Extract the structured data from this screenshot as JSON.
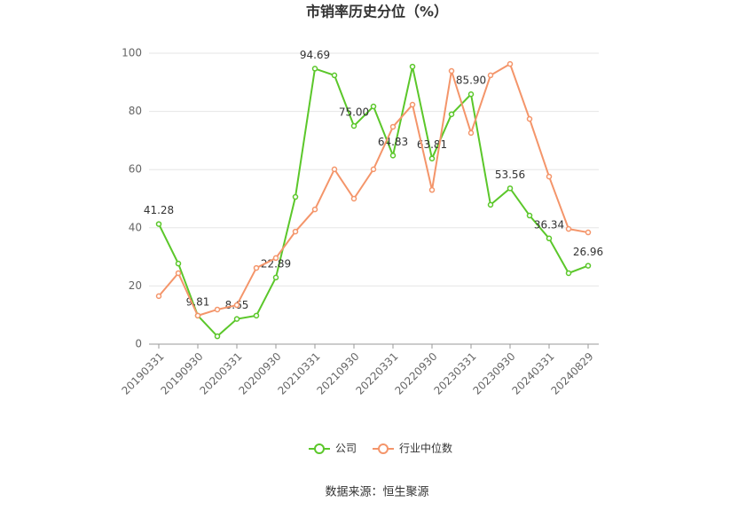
{
  "chart_data": {
    "type": "line",
    "title": "市销率历史分位（%）",
    "source": "数据来源：恒生聚源",
    "categories": [
      "20190331",
      null,
      "20190930",
      null,
      "20200331",
      null,
      "20200930",
      null,
      "20210331",
      null,
      "20210930",
      null,
      "20220331",
      null,
      "20220930",
      null,
      "20230331",
      null,
      "20230930",
      null,
      "20240331",
      null,
      "20240829"
    ],
    "series": [
      {
        "name": "公司",
        "color": "#5bc72a",
        "values": [
          41.28,
          27.7,
          9.81,
          2.7,
          8.65,
          9.8,
          22.89,
          50.6,
          94.69,
          92.4,
          75.0,
          81.7,
          64.83,
          95.4,
          63.81,
          79.0,
          85.9,
          47.9,
          53.56,
          44.2,
          36.34,
          24.4,
          26.96
        ],
        "value_labels": [
          "41.28",
          null,
          "9.81",
          null,
          "8.65",
          null,
          "22.89",
          null,
          "94.69",
          null,
          "75.00",
          null,
          "64.83",
          null,
          "63.81",
          null,
          "85.90",
          null,
          "53.56",
          null,
          "36.34",
          null,
          "26.96"
        ]
      },
      {
        "name": "行业中位数",
        "color": "#f4956a",
        "values": [
          16.5,
          24.4,
          9.8,
          11.9,
          13.4,
          26.2,
          29.6,
          38.7,
          46.3,
          60.1,
          50.0,
          60.1,
          74.7,
          82.3,
          53.0,
          93.9,
          72.6,
          92.4,
          96.3,
          77.4,
          57.6,
          39.6,
          38.4
        ]
      }
    ],
    "ylim": [
      0,
      100
    ],
    "yticks": [
      0,
      20,
      40,
      60,
      80,
      100
    ],
    "grid": true
  }
}
